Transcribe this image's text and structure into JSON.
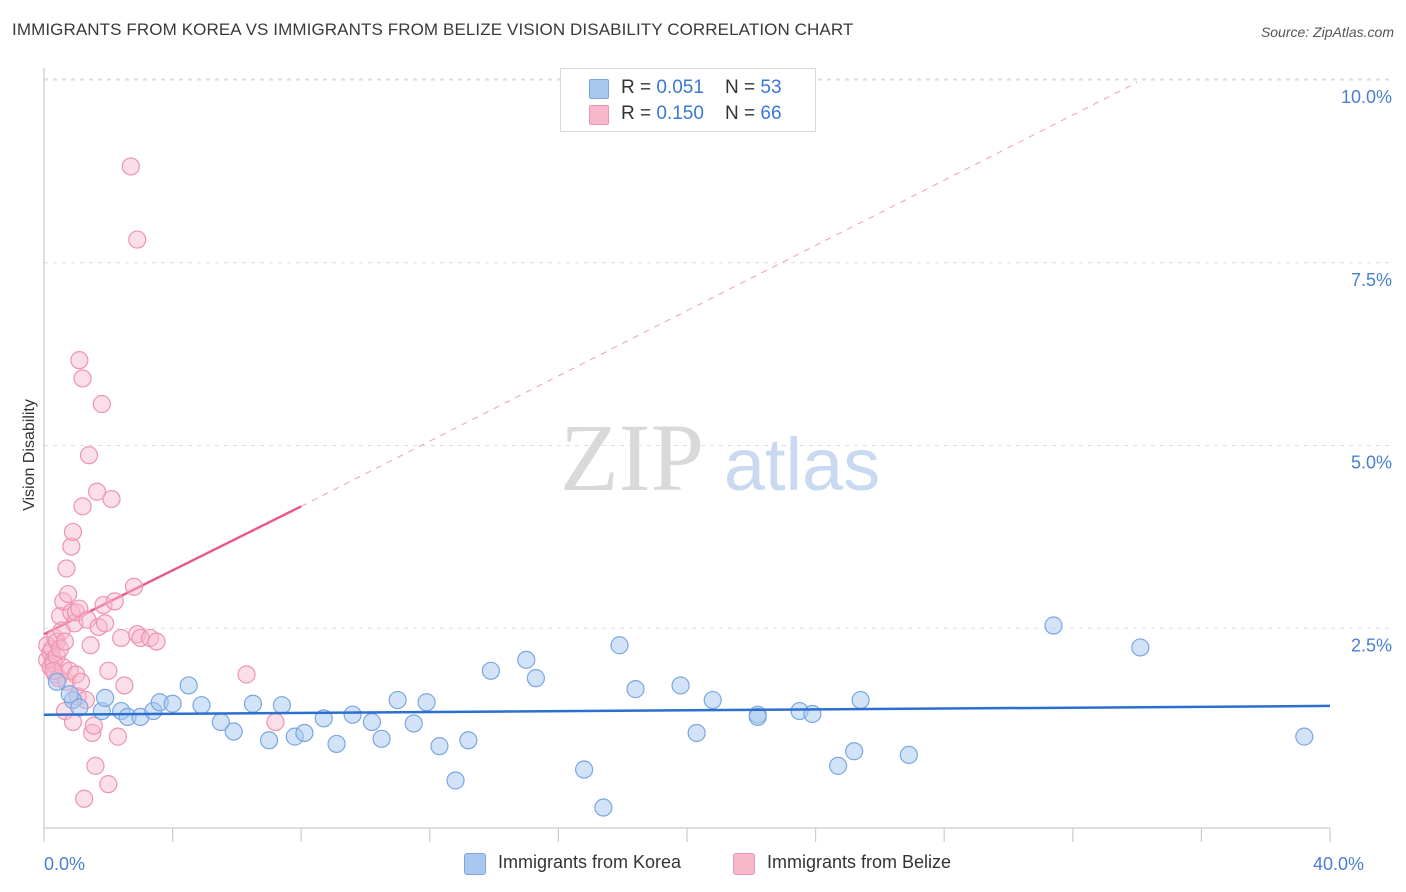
{
  "header": {
    "title": "IMMIGRANTS FROM KOREA VS IMMIGRANTS FROM BELIZE VISION DISABILITY CORRELATION CHART",
    "source": "Source: ZipAtlas.com"
  },
  "legend_top": {
    "rows": [
      {
        "r_label": "R = ",
        "r_value": "0.051",
        "n_label": "N = ",
        "n_value": "53"
      },
      {
        "r_label": "R = ",
        "r_value": "0.150",
        "n_label": "N = ",
        "n_value": "66"
      }
    ]
  },
  "watermark": {
    "zip": "ZIP",
    "atlas": "atlas"
  },
  "colors": {
    "korea_fill": "#a8c8f0",
    "korea_stroke": "#7aa7e0",
    "korea_line": "#2c6fcf",
    "belize_fill": "#f7b8cb",
    "belize_stroke": "#ee93b1",
    "belize_line": "#e85a8a",
    "tick_text": "#4a7fd0",
    "grid": "#dddddd"
  },
  "chart_data": {
    "type": "scatter",
    "xlabel": "",
    "ylabel": "Vision Disability",
    "xlim": [
      0,
      40
    ],
    "ylim": [
      0,
      10.5
    ],
    "x_tick_labels": [
      {
        "value": 0,
        "label": "0.0%"
      },
      {
        "value": 40,
        "label": "40.0%"
      }
    ],
    "y_tick_labels": [
      {
        "value": 2.5,
        "label": "2.5%"
      },
      {
        "value": 5.0,
        "label": "5.0%"
      },
      {
        "value": 7.5,
        "label": "7.5%"
      },
      {
        "value": 10.0,
        "label": "10.0%"
      }
    ],
    "grid": "horizontal dashed",
    "legend_position": "top-center",
    "series": [
      {
        "name": "Immigrants from Korea",
        "R": 0.051,
        "N": 53,
        "trend": {
          "x": [
            0,
            40
          ],
          "y": [
            1.55,
            1.67
          ]
        },
        "points": [
          [
            0.4,
            2.0
          ],
          [
            0.9,
            1.75
          ],
          [
            1.1,
            1.65
          ],
          [
            1.8,
            1.6
          ],
          [
            1.9,
            1.78
          ],
          [
            2.4,
            1.6
          ],
          [
            2.6,
            1.52
          ],
          [
            3.0,
            1.52
          ],
          [
            3.4,
            1.6
          ],
          [
            3.6,
            1.72
          ],
          [
            4.0,
            1.7
          ],
          [
            4.5,
            1.95
          ],
          [
            4.9,
            1.68
          ],
          [
            5.5,
            1.45
          ],
          [
            5.9,
            1.32
          ],
          [
            6.5,
            1.7
          ],
          [
            7.0,
            1.2
          ],
          [
            7.4,
            1.68
          ],
          [
            7.8,
            1.25
          ],
          [
            8.1,
            1.3
          ],
          [
            8.7,
            1.5
          ],
          [
            9.1,
            1.15
          ],
          [
            9.6,
            1.55
          ],
          [
            10.2,
            1.45
          ],
          [
            10.5,
            1.22
          ],
          [
            11.0,
            1.75
          ],
          [
            11.5,
            1.43
          ],
          [
            11.9,
            1.72
          ],
          [
            12.3,
            1.12
          ],
          [
            12.8,
            0.65
          ],
          [
            13.2,
            1.2
          ],
          [
            13.9,
            2.15
          ],
          [
            15.0,
            2.3
          ],
          [
            15.3,
            2.05
          ],
          [
            16.8,
            0.8
          ],
          [
            17.4,
            0.28
          ],
          [
            17.9,
            2.5
          ],
          [
            18.4,
            1.9
          ],
          [
            19.8,
            1.95
          ],
          [
            20.3,
            1.3
          ],
          [
            20.8,
            1.75
          ],
          [
            22.2,
            1.55
          ],
          [
            22.2,
            1.52
          ],
          [
            23.5,
            1.6
          ],
          [
            23.9,
            1.56
          ],
          [
            24.7,
            0.85
          ],
          [
            25.2,
            1.05
          ],
          [
            25.4,
            1.75
          ],
          [
            26.9,
            1.0
          ],
          [
            31.4,
            2.77
          ],
          [
            34.1,
            2.47
          ],
          [
            39.2,
            1.25
          ],
          [
            0.8,
            1.83
          ]
        ]
      },
      {
        "name": "Immigrants from Belize",
        "R": 0.15,
        "N": 66,
        "trend_solid": {
          "x": [
            0,
            8
          ],
          "y": [
            2.65,
            4.4
          ]
        },
        "trend_dashed": {
          "x": [
            8,
            34
          ],
          "y": [
            4.4,
            10.2
          ]
        },
        "points": [
          [
            0.1,
            2.5
          ],
          [
            0.1,
            2.3
          ],
          [
            0.2,
            2.4
          ],
          [
            0.2,
            2.2
          ],
          [
            0.25,
            2.45
          ],
          [
            0.3,
            2.3
          ],
          [
            0.3,
            2.25
          ],
          [
            0.35,
            2.1
          ],
          [
            0.35,
            2.6
          ],
          [
            0.4,
            2.55
          ],
          [
            0.4,
            2.35
          ],
          [
            0.45,
            2.05
          ],
          [
            0.5,
            2.9
          ],
          [
            0.5,
            2.45
          ],
          [
            0.55,
            2.7
          ],
          [
            0.6,
            2.2
          ],
          [
            0.6,
            3.1
          ],
          [
            0.65,
            1.6
          ],
          [
            0.65,
            2.55
          ],
          [
            0.7,
            3.55
          ],
          [
            0.7,
            2.0
          ],
          [
            0.75,
            3.2
          ],
          [
            0.8,
            2.15
          ],
          [
            0.85,
            3.85
          ],
          [
            0.85,
            2.95
          ],
          [
            0.9,
            4.05
          ],
          [
            0.9,
            1.45
          ],
          [
            0.95,
            2.8
          ],
          [
            1.0,
            2.1
          ],
          [
            1.0,
            2.95
          ],
          [
            1.05,
            1.8
          ],
          [
            1.1,
            6.4
          ],
          [
            1.1,
            3.0
          ],
          [
            1.15,
            2.0
          ],
          [
            1.2,
            6.15
          ],
          [
            1.2,
            4.4
          ],
          [
            1.25,
            0.4
          ],
          [
            1.3,
            1.75
          ],
          [
            1.35,
            2.85
          ],
          [
            1.4,
            5.1
          ],
          [
            1.45,
            2.5
          ],
          [
            1.5,
            1.3
          ],
          [
            1.55,
            1.4
          ],
          [
            1.6,
            0.85
          ],
          [
            1.65,
            4.6
          ],
          [
            1.7,
            2.75
          ],
          [
            1.8,
            5.8
          ],
          [
            1.85,
            3.05
          ],
          [
            1.9,
            2.8
          ],
          [
            2.0,
            2.15
          ],
          [
            2.0,
            0.6
          ],
          [
            2.1,
            4.5
          ],
          [
            2.2,
            3.1
          ],
          [
            2.3,
            1.25
          ],
          [
            2.4,
            2.6
          ],
          [
            2.5,
            1.95
          ],
          [
            2.8,
            3.3
          ],
          [
            2.9,
            2.65
          ],
          [
            3.0,
            2.6
          ],
          [
            3.3,
            2.6
          ],
          [
            3.5,
            2.55
          ],
          [
            2.7,
            9.05
          ],
          [
            2.9,
            8.05
          ],
          [
            6.3,
            2.1
          ],
          [
            7.2,
            1.45
          ],
          [
            0.3,
            2.15
          ]
        ]
      }
    ]
  },
  "bottom_legend": {
    "korea_label": "Immigrants from Korea",
    "belize_label": "Immigrants from Belize"
  }
}
